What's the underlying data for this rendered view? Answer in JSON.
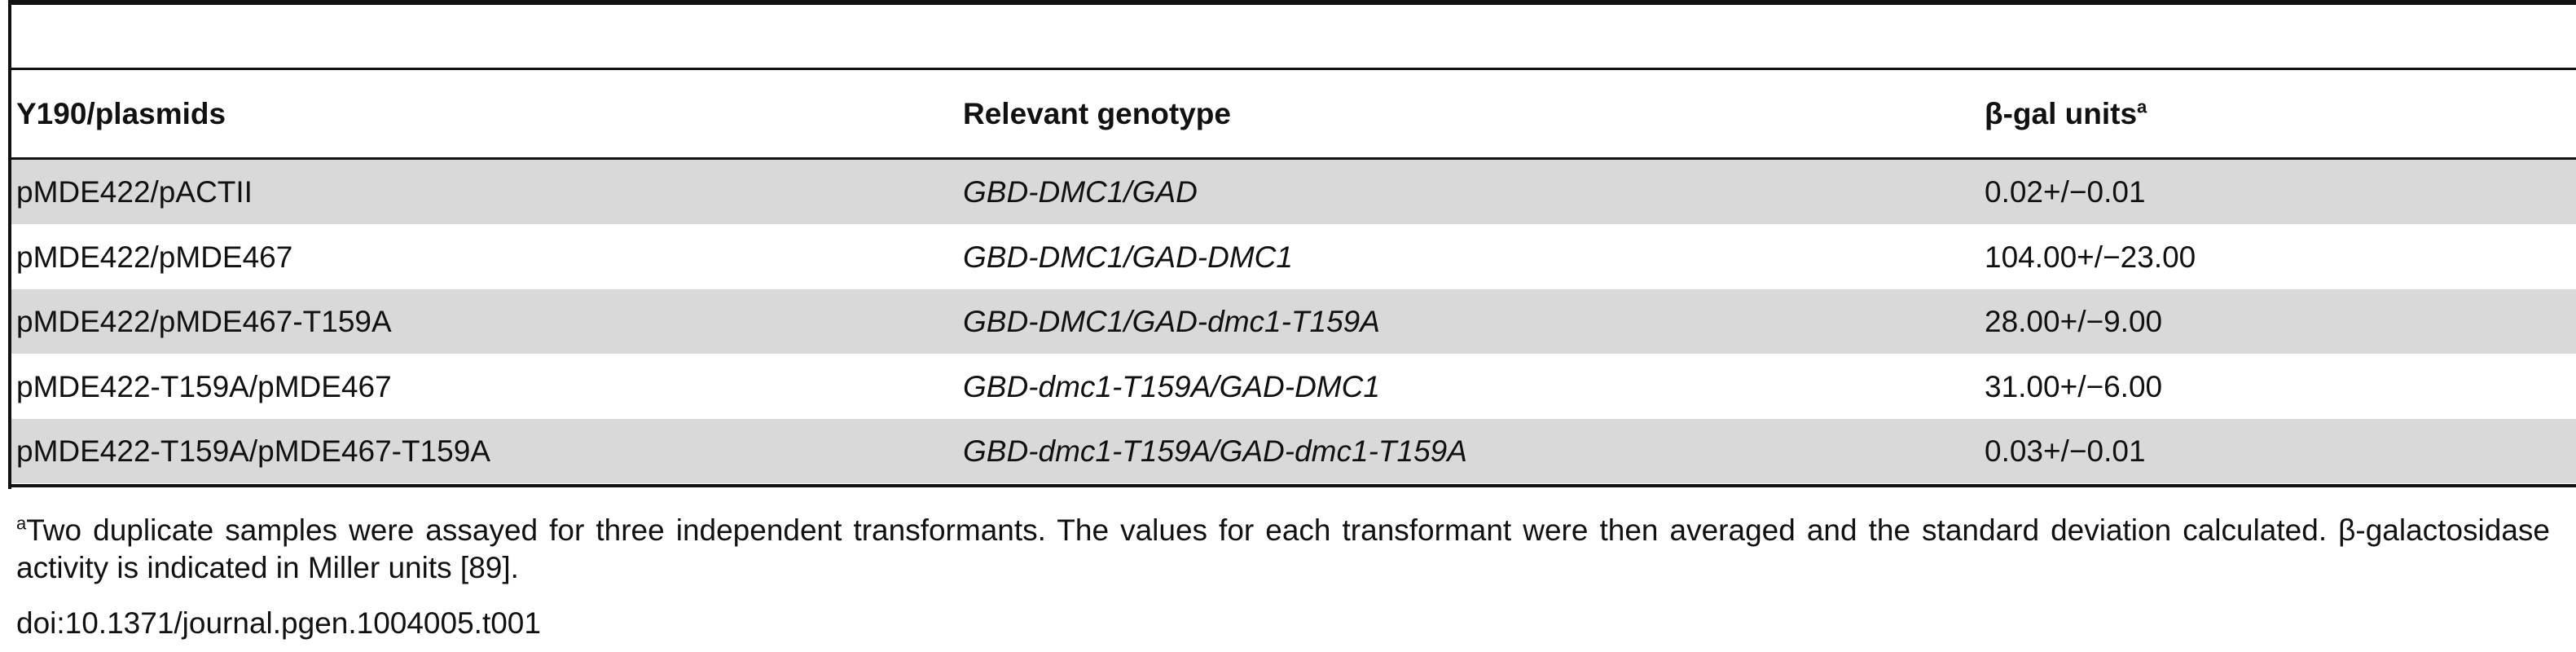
{
  "table": {
    "columns": [
      "Y190/plasmids",
      "Relevant genotype",
      "β-gal units"
    ],
    "column_note": "a",
    "rows": [
      [
        "pMDE422/pACTII",
        "GBD-DMC1/GAD",
        "0.02+/−0.01"
      ],
      [
        "pMDE422/pMDE467",
        "GBD-DMC1/GAD-DMC1",
        "104.00+/−23.00"
      ],
      [
        "pMDE422/pMDE467-T159A",
        "GBD-DMC1/GAD-dmc1-T159A",
        "28.00+/−9.00"
      ],
      [
        "pMDE422-T159A/pMDE467",
        "GBD-dmc1-T159A/GAD-DMC1",
        "31.00+/−6.00"
      ],
      [
        "pMDE422-T159A/pMDE467-T159A",
        "GBD-dmc1-T159A/GAD-dmc1-T159A",
        "0.03+/−0.01"
      ]
    ]
  },
  "footnote": {
    "marker": "a",
    "text": "Two duplicate samples were assayed for three independent transformants. The values for each transformant were then averaged and the standard deviation calculated. β-galactosidase activity is indicated in Miller units [89]."
  },
  "doi": "doi:10.1371/journal.pgen.1004005.t001"
}
